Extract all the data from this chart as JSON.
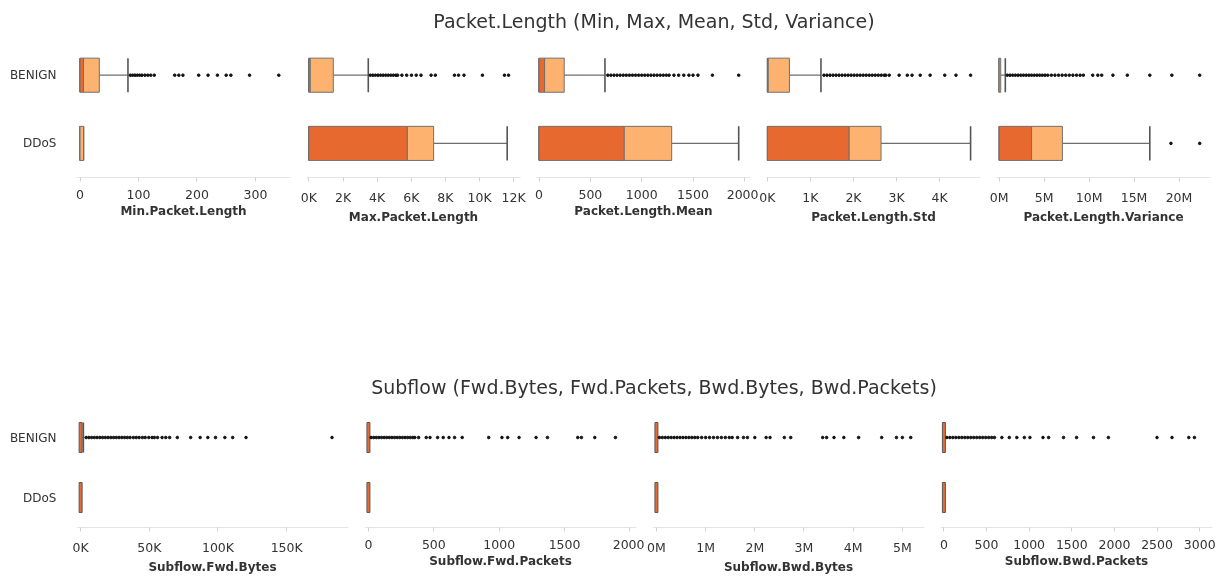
{
  "chart_data": [
    {
      "type": "other",
      "title": "Packet.Length (Min, Max, Mean, Std, Variance)"
    },
    {
      "type": "box",
      "orientation": "horizontal",
      "categories": [
        "BENIGN",
        "DDoS"
      ],
      "xlabel": "Min.Packet.Length",
      "xlim": [
        -6,
        360
      ],
      "xticks": [
        0,
        100,
        200,
        300
      ],
      "boxes": [
        {
          "low": 0,
          "q1": 0,
          "median": 6,
          "q3": 33,
          "high": 82,
          "outliers": [
            86,
            90,
            94,
            98,
            102,
            106,
            111,
            116,
            121,
            127,
            162,
            169,
            176,
            203,
            219,
            235,
            250,
            258,
            290,
            340
          ]
        },
        {
          "low": 0,
          "q1": 0,
          "median": 0,
          "q3": 6,
          "high": 6
        }
      ]
    },
    {
      "type": "box",
      "orientation": "horizontal",
      "categories": [
        "BENIGN",
        "DDoS"
      ],
      "xlabel": "Max.Packet.Length",
      "xlim": [
        -140,
        12400
      ],
      "xticks": [
        {
          "value": 0,
          "label": "0K"
        },
        {
          "value": 2000,
          "label": "2K"
        },
        {
          "value": 4000,
          "label": "4K"
        },
        {
          "value": 6000,
          "label": "6K"
        },
        {
          "value": 8000,
          "label": "8K"
        },
        {
          "value": 10000,
          "label": "10K"
        },
        {
          "value": 12000,
          "label": "12K"
        }
      ],
      "tick_labels": "x",
      "boxes": [
        {
          "low": 0,
          "q1": 0,
          "median": 80,
          "q3": 1430,
          "high": 3480,
          "outliers": [
            3600,
            3750,
            3900,
            4050,
            4200,
            4350,
            4500,
            4650,
            4800,
            4950,
            5100,
            5200,
            5450,
            5730,
            6010,
            6290,
            6570,
            7160,
            7410,
            8530,
            8770,
            9090,
            10170,
            11460,
            11700
          ]
        },
        {
          "low": 0,
          "q1": 0,
          "median": 5770,
          "q3": 7310,
          "high": 11620
        }
      ]
    },
    {
      "type": "box",
      "orientation": "horizontal",
      "categories": [
        "BENIGN",
        "DDoS"
      ],
      "xlabel": "Packet.Length.Mean",
      "xlim": [
        -25,
        2060
      ],
      "xticks": [
        0,
        500,
        1000,
        1500,
        2000
      ],
      "tick_labels": "x",
      "boxes": [
        {
          "low": 0,
          "q1": 0,
          "median": 54,
          "q3": 245,
          "high": 642,
          "outliers": [
            670,
            700,
            730,
            760,
            790,
            820,
            850,
            880,
            910,
            940,
            970,
            1000,
            1030,
            1060,
            1090,
            1120,
            1150,
            1180,
            1210,
            1240,
            1267,
            1314,
            1360,
            1410,
            1460,
            1500,
            1548,
            1689,
            1945
          ]
        },
        {
          "low": 0,
          "q1": 0,
          "median": 830,
          "q3": 1292,
          "high": 1945
        }
      ]
    },
    {
      "type": "box",
      "orientation": "horizontal",
      "categories": [
        "BENIGN",
        "DDoS"
      ],
      "xlabel": "Packet.Length.Std",
      "xlim": [
        -20,
        4950
      ],
      "xticks": [
        {
          "value": 0,
          "label": "0K"
        },
        {
          "value": 1000,
          "label": "1K"
        },
        {
          "value": 2000,
          "label": "2K"
        },
        {
          "value": 3000,
          "label": "3K"
        },
        {
          "value": 4000,
          "label": "4K"
        }
      ],
      "tick_labels": "x",
      "boxes": [
        {
          "low": 0,
          "q1": 0,
          "median": 20,
          "q3": 512,
          "high": 1245,
          "outliers": [
            1315,
            1385,
            1455,
            1525,
            1595,
            1665,
            1735,
            1805,
            1875,
            1945,
            2015,
            2085,
            2155,
            2225,
            2295,
            2365,
            2435,
            2505,
            2575,
            2645,
            2715,
            2750,
            2830,
            3060,
            3250,
            3360,
            3550,
            3780,
            4120,
            4380,
            4720
          ]
        },
        {
          "low": 0,
          "q1": 0,
          "median": 1900,
          "q3": 2640,
          "high": 4720
        }
      ]
    },
    {
      "type": "box",
      "orientation": "horizontal",
      "categories": [
        "BENIGN",
        "DDoS"
      ],
      "xlabel": "Packet.Length.Variance",
      "xlim": [
        -300000,
        23500000
      ],
      "xticks": [
        {
          "value": 0,
          "label": "0M"
        },
        {
          "value": 5000000,
          "label": "5M"
        },
        {
          "value": 10000000,
          "label": "10M"
        },
        {
          "value": 15000000,
          "label": "15M"
        },
        {
          "value": 20000000,
          "label": "20M"
        }
      ],
      "tick_labels": "x",
      "boxes": [
        {
          "low": 0,
          "q1": 0,
          "median": 0,
          "q3": 170000,
          "high": 680000,
          "outliers": [
            900000,
            1200000,
            1500000,
            1800000,
            2100000,
            2400000,
            2700000,
            3000000,
            3300000,
            3600000,
            3900000,
            4200000,
            4500000,
            4800000,
            5100000,
            5400000,
            5800000,
            6200000,
            6600000,
            7000000,
            7400000,
            7800000,
            8200000,
            8600000,
            9000000,
            9360000,
            10400000,
            10970000,
            11400000,
            12650000,
            14250000,
            16750000,
            19200000,
            22300000
          ]
        },
        {
          "low": 0,
          "q1": 0,
          "median": 3600000,
          "q3": 7030000,
          "high": 16750000,
          "outliers": [
            19100000,
            22300000
          ]
        }
      ]
    },
    {
      "type": "other",
      "title": "Subflow (Fwd.Bytes, Fwd.Packets, Bwd.Bytes, Bwd.Packets)"
    },
    {
      "type": "box",
      "orientation": "horizontal",
      "categories": [
        "BENIGN",
        "DDoS"
      ],
      "xlabel": "Subflow.Fwd.Bytes",
      "xlim": [
        -3000,
        195000
      ],
      "xticks": [
        {
          "value": 0,
          "label": "0K"
        },
        {
          "value": 50000,
          "label": "50K"
        },
        {
          "value": 100000,
          "label": "100K"
        },
        {
          "value": 150000,
          "label": "150K"
        }
      ],
      "boxes": [
        {
          "low": 0,
          "q1": 0,
          "median": 0,
          "q3": 0,
          "high": 2000,
          "outliers": [
            4000,
            6000,
            8000,
            10000,
            12000,
            14000,
            16000,
            18000,
            20000,
            22000,
            24000,
            26000,
            28000,
            30000,
            32000,
            34000,
            36000,
            38400,
            40500,
            42600,
            45000,
            47000,
            49600,
            52000,
            53700,
            56000,
            59300,
            62000,
            64800,
            70400,
            80100,
            87000,
            92600,
            98200,
            105000,
            110700,
            120400,
            183000
          ]
        },
        {
          "low": 0,
          "q1": 0,
          "median": 0,
          "q3": 0,
          "high": 0
        }
      ]
    },
    {
      "type": "box",
      "orientation": "horizontal",
      "categories": [
        "BENIGN",
        "DDoS"
      ],
      "xlabel": "Subflow.Fwd.Packets",
      "xlim": [
        -30,
        2050
      ],
      "xticks": [
        0,
        500,
        1000,
        1500,
        2000
      ],
      "tick_labels": "x",
      "boxes": [
        {
          "low": 0,
          "q1": 0,
          "median": 0,
          "q3": 0,
          "high": 0,
          "outliers": [
            20,
            40,
            60,
            80,
            100,
            120,
            140,
            160,
            180,
            200,
            220,
            240,
            260,
            280,
            300,
            320,
            340,
            355,
            384,
            442,
            471,
            529,
            572,
            616,
            659,
            717,
            920,
            1021,
            1065,
            1152,
            1282,
            1369,
            1601,
            1629,
            1731,
            1889
          ]
        },
        {
          "low": 0,
          "q1": 0,
          "median": 0,
          "q3": 0,
          "high": 0
        }
      ]
    },
    {
      "type": "box",
      "orientation": "horizontal",
      "categories": [
        "BENIGN",
        "DDoS"
      ],
      "xlabel": "Subflow.Bwd.Bytes",
      "xlim": [
        -80000,
        5450000
      ],
      "xticks": [
        {
          "value": 0,
          "label": "0M"
        },
        {
          "value": 1000000,
          "label": "1M"
        },
        {
          "value": 2000000,
          "label": "2M"
        },
        {
          "value": 3000000,
          "label": "3M"
        },
        {
          "value": 4000000,
          "label": "4M"
        },
        {
          "value": 5000000,
          "label": "5M"
        }
      ],
      "tick_labels": "x",
      "boxes": [
        {
          "low": 0,
          "q1": 0,
          "median": 0,
          "q3": 0,
          "high": 0,
          "outliers": [
            60000,
            120000,
            180000,
            240000,
            300000,
            360000,
            420000,
            480000,
            540000,
            600000,
            660000,
            720000,
            780000,
            840000,
            920000,
            1000000,
            1080000,
            1160000,
            1240000,
            1320000,
            1400000,
            1480000,
            1540000,
            1650000,
            1770000,
            1850000,
            2000000,
            2230000,
            2310000,
            2600000,
            2730000,
            3380000,
            3460000,
            3610000,
            3810000,
            4110000,
            4580000,
            4880000,
            5000000,
            5170000
          ]
        },
        {
          "low": 0,
          "q1": 0,
          "median": 0,
          "q3": 0,
          "high": 0
        }
      ]
    },
    {
      "type": "box",
      "orientation": "horizontal",
      "categories": [
        "BENIGN",
        "DDoS"
      ],
      "xlabel": "Subflow.Bwd.Packets",
      "xlim": [
        -40,
        3150
      ],
      "xticks": [
        0,
        500,
        1000,
        1500,
        2000,
        2500,
        3000
      ],
      "tick_labels": "x",
      "boxes": [
        {
          "low": 0,
          "q1": 0,
          "median": 0,
          "q3": 0,
          "high": 0,
          "outliers": [
            35,
            70,
            105,
            140,
            175,
            210,
            245,
            280,
            315,
            350,
            385,
            420,
            455,
            490,
            525,
            560,
            593,
            680,
            767,
            855,
            943,
            1009,
            1162,
            1228,
            1403,
            1556,
            1754,
            1929,
            2499,
            2675,
            2872,
            2938
          ]
        },
        {
          "low": 0,
          "q1": 0,
          "median": 0,
          "q3": 0,
          "high": 0
        }
      ]
    }
  ]
}
